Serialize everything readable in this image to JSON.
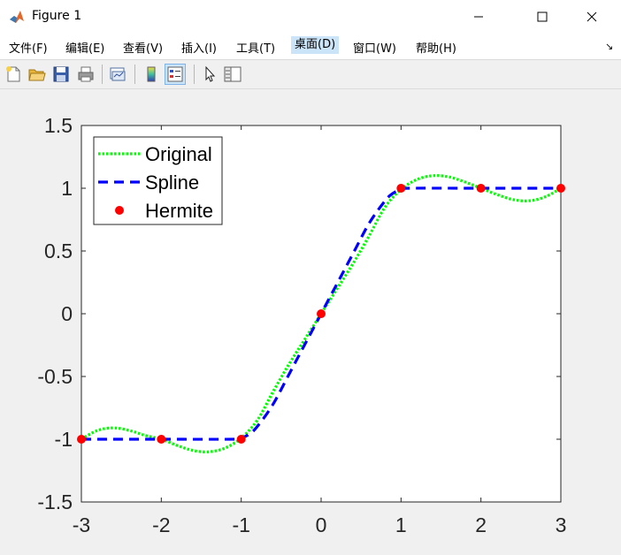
{
  "window": {
    "title": "Figure 1"
  },
  "menubar": {
    "items": [
      {
        "label": "文件(F)"
      },
      {
        "label": "编辑(E)"
      },
      {
        "label": "查看(V)"
      },
      {
        "label": "插入(I)"
      },
      {
        "label": "工具(T)"
      },
      {
        "label": "桌面(D)"
      },
      {
        "label": "窗口(W)"
      },
      {
        "label": "帮助(H)"
      }
    ],
    "active_index": 5
  },
  "toolbar": {
    "icons": [
      "new-figure-icon",
      "open-file-icon",
      "save-icon",
      "print-icon",
      "link-plot-icon",
      "insert-colorbar-icon",
      "insert-legend-icon",
      "edit-plot-arrow-icon",
      "property-inspector-icon"
    ]
  },
  "chart_data": {
    "type": "line",
    "title": "",
    "xlabel": "",
    "ylabel": "",
    "xlim": [
      -3,
      3
    ],
    "ylim": [
      -1.5,
      1.5
    ],
    "xticks": [
      "-3",
      "-2",
      "-1",
      "0",
      "1",
      "2",
      "3"
    ],
    "yticks": [
      "1.5",
      "1",
      "0.5",
      "0",
      "-0.5",
      "-1",
      "-1.5"
    ],
    "legend": {
      "placement": "top-left",
      "entries": [
        "Original",
        "Spline",
        "Hermite"
      ]
    },
    "colors": {
      "original": "#00ff00",
      "spline": "#0000ff",
      "hermite": "#ff0000"
    },
    "series": [
      {
        "name": "Original",
        "style": "dotted",
        "x": [
          -3,
          -2.8,
          -2.6,
          -2.4,
          -2.2,
          -2,
          -1.8,
          -1.6,
          -1.4,
          -1.2,
          -1,
          -0.8,
          -0.6,
          -0.4,
          -0.2,
          0,
          0.2,
          0.4,
          0.6,
          0.8,
          1,
          1.2,
          1.4,
          1.6,
          1.8,
          2,
          2.2,
          2.4,
          2.6,
          2.8,
          3
        ],
        "y": [
          -1,
          -0.93,
          -0.91,
          -0.93,
          -0.97,
          -1,
          -1.05,
          -1.09,
          -1.1,
          -1.07,
          -0.99,
          -0.85,
          -0.62,
          -0.4,
          -0.2,
          0,
          0.2,
          0.4,
          0.62,
          0.85,
          0.99,
          1.07,
          1.1,
          1.09,
          1.05,
          1,
          0.95,
          0.91,
          0.9,
          0.93,
          1
        ]
      },
      {
        "name": "Spline",
        "style": "dashed",
        "x": [
          -3,
          -2,
          -1.1,
          -1,
          -0.9,
          -0.8,
          -0.6,
          -0.4,
          -0.2,
          0,
          0.2,
          0.4,
          0.6,
          0.8,
          0.9,
          1,
          1.1,
          2,
          3
        ],
        "y": [
          -1,
          -1,
          -1,
          -0.99,
          -0.96,
          -0.9,
          -0.72,
          -0.48,
          -0.24,
          0,
          0.24,
          0.48,
          0.72,
          0.9,
          0.96,
          0.99,
          1,
          1,
          1
        ]
      },
      {
        "name": "Hermite",
        "style": "markers",
        "x": [
          -3,
          -2,
          -1,
          0,
          1,
          2,
          3
        ],
        "y": [
          -1,
          -1,
          -1,
          0,
          1,
          1,
          1
        ]
      }
    ]
  }
}
